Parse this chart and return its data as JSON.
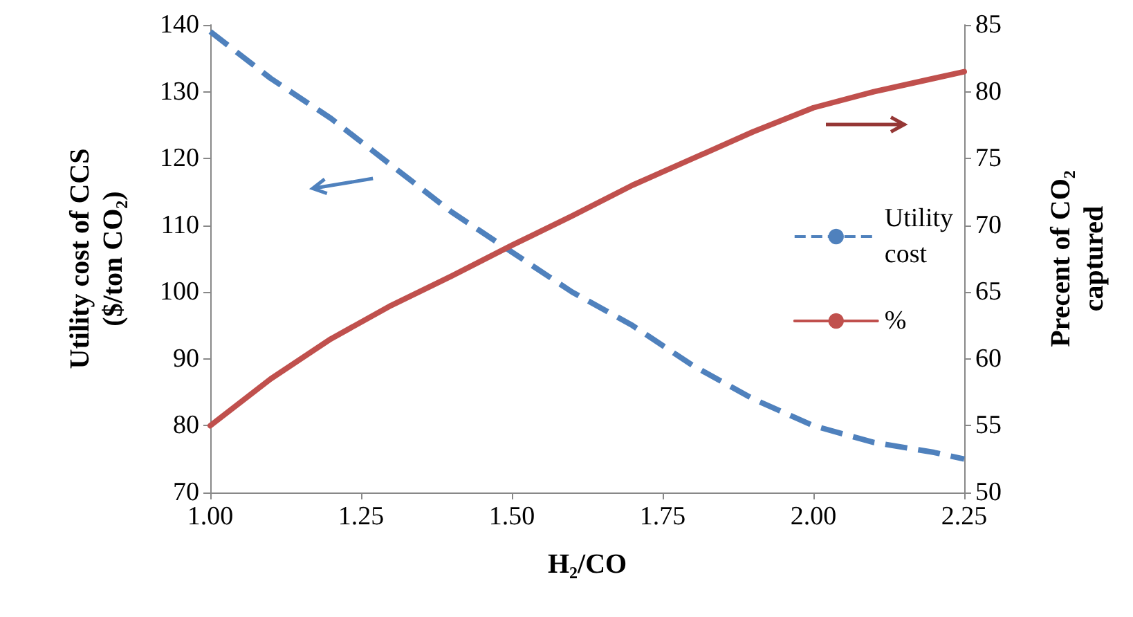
{
  "chart_data": {
    "type": "line",
    "xlabel": "H₂/CO",
    "ylabel": "Utility cost of CCS\n($/ton CO₂)",
    "y2label": "Precent of CO₂\ncaptured",
    "x": [
      1.0,
      1.1,
      1.2,
      1.3,
      1.4,
      1.5,
      1.6,
      1.7,
      1.8,
      1.9,
      2.0,
      2.1,
      2.2,
      2.25
    ],
    "series": [
      {
        "name": "Utility\ncost",
        "color": "#4f81bd",
        "line_style": "dashed",
        "values": [
          139,
          132,
          126,
          119,
          112,
          106,
          100,
          95,
          89,
          84,
          80,
          77.5,
          76,
          75
        ]
      },
      {
        "name": "%",
        "color": "#c0504d",
        "line_style": "solid",
        "axis": "y2",
        "values": [
          55,
          58.5,
          61.5,
          64,
          66.2,
          68.5,
          70.7,
          73,
          75,
          77,
          78.8,
          80,
          81,
          81.5
        ]
      }
    ],
    "xlim": [
      1.0,
      2.25
    ],
    "xticks": [
      {
        "value": 1.0,
        "label": "1.00"
      },
      {
        "value": 1.25,
        "label": "1.25"
      },
      {
        "value": 1.5,
        "label": "1.50"
      },
      {
        "value": 1.75,
        "label": "1.75"
      },
      {
        "value": 2.0,
        "label": "2.00"
      },
      {
        "value": 2.25,
        "label": "2.25"
      }
    ],
    "ylim": [
      70,
      140
    ],
    "yticks": [
      70,
      80,
      90,
      100,
      110,
      120,
      130,
      140
    ],
    "y2lim": [
      50,
      85
    ],
    "y2ticks": [
      50,
      55,
      60,
      65,
      70,
      75,
      80,
      85
    ],
    "legend": "right",
    "grid": false,
    "marker": "none"
  }
}
